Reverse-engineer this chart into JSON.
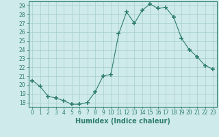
{
  "x": [
    0,
    1,
    2,
    3,
    4,
    5,
    6,
    7,
    8,
    9,
    10,
    11,
    12,
    13,
    14,
    15,
    16,
    17,
    18,
    19,
    20,
    21,
    22,
    23
  ],
  "y": [
    20.5,
    19.8,
    18.7,
    18.5,
    18.2,
    17.8,
    17.8,
    18.0,
    19.2,
    21.0,
    21.2,
    25.8,
    28.3,
    27.0,
    28.5,
    29.2,
    28.7,
    28.8,
    27.7,
    25.3,
    24.0,
    23.2,
    22.2,
    21.8
  ],
  "line_color": "#2e7d6e",
  "marker": "+",
  "markersize": 4,
  "markeredgewidth": 1.2,
  "bg_color": "#ceeaea",
  "grid_color": "#a8cece",
  "xlabel": "Humidex (Indice chaleur)",
  "ylabel": "",
  "xlim": [
    -0.5,
    23.5
  ],
  "ylim": [
    17.5,
    29.5
  ],
  "yticks": [
    18,
    19,
    20,
    21,
    22,
    23,
    24,
    25,
    26,
    27,
    28,
    29
  ],
  "xticks": [
    0,
    1,
    2,
    3,
    4,
    5,
    6,
    7,
    8,
    9,
    10,
    11,
    12,
    13,
    14,
    15,
    16,
    17,
    18,
    19,
    20,
    21,
    22,
    23
  ],
  "tick_color": "#2e7d6e",
  "label_fontsize": 5.5,
  "xlabel_fontsize": 7
}
